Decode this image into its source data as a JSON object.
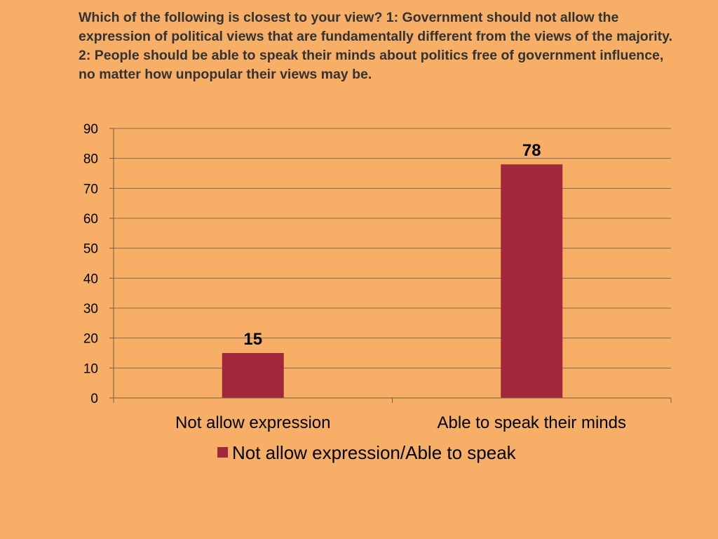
{
  "colors": {
    "background": "#f7af67",
    "bar": "#a0283a",
    "gridline": "#8a6a4a",
    "axis": "#7a5a3a",
    "title_text": "#333333"
  },
  "chart_data": {
    "type": "bar",
    "title": "Which of the following is closest to your view? 1: Government should not allow the expression of political views that are fundamentally different from the views of the majority. 2: People should be able to speak their minds about politics free of government influence, no matter how unpopular their views may be.",
    "categories": [
      "Not allow expression",
      "Able to speak their minds"
    ],
    "series": [
      {
        "name": "Not allow expression/Able to speak",
        "values": [
          15,
          78
        ]
      }
    ],
    "data_labels": [
      "15",
      "78"
    ],
    "yticks": [
      0,
      10,
      20,
      30,
      40,
      50,
      60,
      70,
      80,
      90
    ],
    "ylim": [
      0,
      90
    ],
    "xlabel": "",
    "ylabel": "",
    "grid": true,
    "legend": "bottom"
  }
}
